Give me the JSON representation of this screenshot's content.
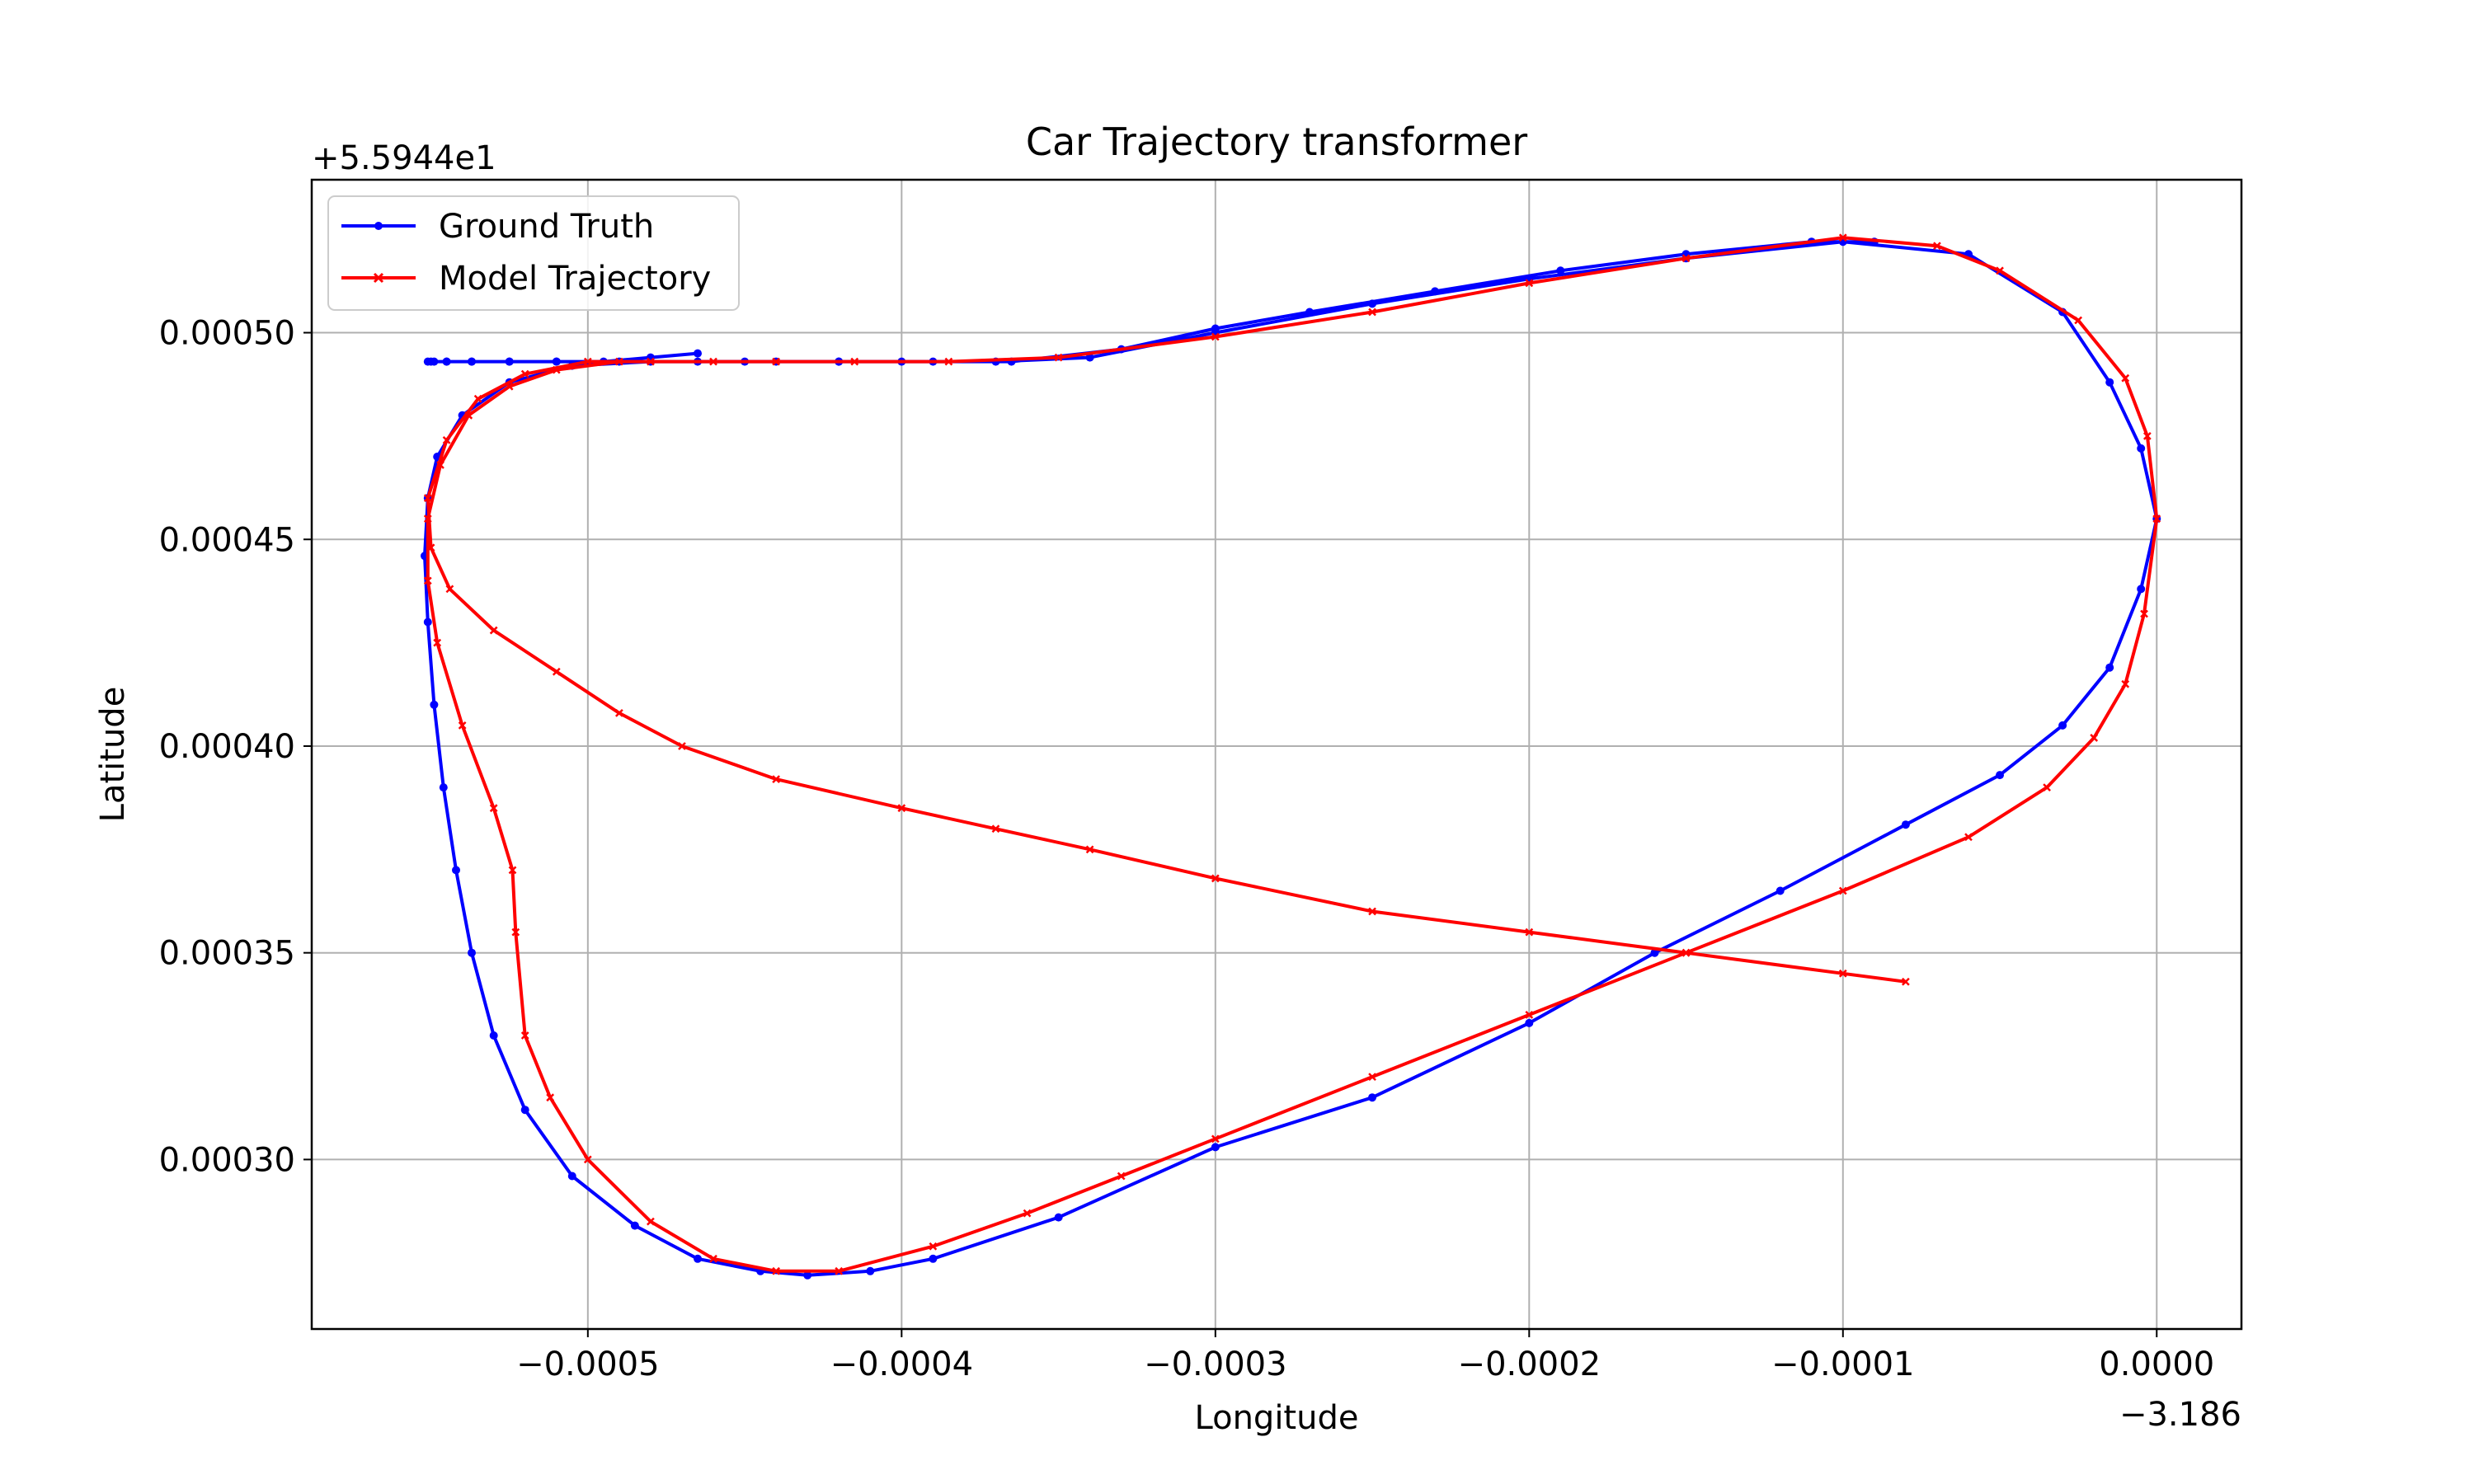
{
  "chart_data": {
    "type": "line",
    "title": "Car Trajectory transformer",
    "xlabel": "Longitude",
    "ylabel": "Latitude",
    "x_offset_label": "−3.186",
    "y_offset_label": "+5.5944e1",
    "xlim": [
      -0.000588,
      2.7e-05
    ],
    "ylim": [
      0.000259,
      0.000537
    ],
    "x_ticks": [
      -0.0005,
      -0.0004,
      -0.0003,
      -0.0002,
      -0.0001,
      0.0
    ],
    "x_tick_labels": [
      "−0.0005",
      "−0.0004",
      "−0.0003",
      "−0.0002",
      "−0.0001",
      "0.0000"
    ],
    "y_ticks": [
      0.0003,
      0.00035,
      0.0004,
      0.00045,
      0.0005
    ],
    "y_tick_labels": [
      "0.00030",
      "0.00035",
      "0.00040",
      "0.00045",
      "0.00050"
    ],
    "grid": true,
    "legend_position": "top-left",
    "series": [
      {
        "name": "Ground Truth",
        "color": "#0000ff",
        "marker": "dot",
        "x": [
          -0.000465,
          -0.00048,
          -0.000495,
          -0.00051,
          -0.000525,
          -0.000537,
          -0.000545,
          -0.00055,
          -0.000551,
          -0.000549,
          -0.000545,
          -0.000537,
          -0.000525,
          -0.00051,
          -0.00049,
          -0.000465,
          -0.00044,
          -0.00042,
          -0.0004,
          -0.00037,
          -0.00034,
          -0.0003,
          -0.00025,
          -0.0002,
          -0.00015,
          -0.0001,
          -6e-05,
          -3e-05,
          -1.5e-05,
          -5e-06,
          0.0,
          -5e-06,
          -1.5e-05,
          -3e-05,
          -5e-05,
          -8e-05,
          -0.00012,
          -0.00016,
          -0.0002,
          -0.00025,
          -0.0003,
          -0.00035,
          -0.00039,
          -0.00041,
          -0.00043,
          -0.000445,
          -0.000465,
          -0.000485,
          -0.000505,
          -0.00052,
          -0.00053,
          -0.000537,
          -0.000542,
          -0.000546,
          -0.000549,
          -0.000551,
          -0.000552,
          -0.000551,
          -0.000548,
          -0.00054,
          -0.000525,
          -0.000505,
          -0.00048,
          -0.00045,
          -0.00042,
          -0.00039,
          -0.000365,
          -0.00033,
          -0.0003,
          -0.00027,
          -0.00023,
          -0.00019,
          -0.00015,
          -0.00011,
          -9e-05
        ],
        "y": [
          0.000495,
          0.000494,
          0.000493,
          0.000493,
          0.000493,
          0.000493,
          0.000493,
          0.000493,
          0.000493,
          0.000493,
          0.000493,
          0.000493,
          0.000493,
          0.000493,
          0.000493,
          0.000493,
          0.000493,
          0.000493,
          0.000493,
          0.000493,
          0.000494,
          0.0005,
          0.000507,
          0.000513,
          0.000518,
          0.000522,
          0.000519,
          0.000505,
          0.000488,
          0.000472,
          0.000455,
          0.000438,
          0.000419,
          0.000405,
          0.000393,
          0.000381,
          0.000365,
          0.00035,
          0.000333,
          0.000315,
          0.000303,
          0.000286,
          0.000276,
          0.000273,
          0.000272,
          0.000273,
          0.000276,
          0.000284,
          0.000296,
          0.000312,
          0.00033,
          0.00035,
          0.00037,
          0.00039,
          0.00041,
          0.00043,
          0.000446,
          0.00046,
          0.00047,
          0.00048,
          0.000488,
          0.000492,
          0.000493,
          0.000493,
          0.000493,
          0.000493,
          0.000493,
          0.000496,
          0.000501,
          0.000505,
          0.00051,
          0.000515,
          0.000519,
          0.000522,
          0.000522
        ]
      },
      {
        "name": "Model Trajectory",
        "color": "#ff0000",
        "marker": "x",
        "x": [
          -0.00049,
          -0.00051,
          -0.000525,
          -0.000538,
          -0.000547,
          -0.000551,
          -0.000551,
          -0.000548,
          -0.00054,
          -0.00053,
          -0.000524,
          -0.000523,
          -0.00052,
          -0.000512,
          -0.0005,
          -0.00048,
          -0.00046,
          -0.00044,
          -0.00042,
          -0.00039,
          -0.00036,
          -0.00033,
          -0.0003,
          -0.00025,
          -0.0002,
          -0.00015,
          -0.0001,
          -6e-05,
          -3.5e-05,
          -2e-05,
          -1e-05,
          -4e-06,
          0.0,
          -3e-06,
          -1e-05,
          -2.5e-05,
          -5e-05,
          -7e-05,
          -0.0001,
          -0.00015,
          -0.0002,
          -0.00025,
          -0.0003,
          -0.00035,
          -0.000385,
          -0.000415,
          -0.00044,
          -0.00046,
          -0.00048,
          -0.0005,
          -0.00052,
          -0.000535,
          -0.000545,
          -0.000551,
          -0.00055,
          -0.000544,
          -0.00053,
          -0.00051,
          -0.00049,
          -0.00047,
          -0.00044,
          -0.0004,
          -0.00037,
          -0.00034,
          -0.0003,
          -0.00025,
          -0.0002,
          -0.00015,
          -0.0001,
          -8e-05
        ],
        "y": [
          0.000493,
          0.000491,
          0.000487,
          0.00048,
          0.000468,
          0.000455,
          0.00044,
          0.000425,
          0.000405,
          0.000385,
          0.00037,
          0.000355,
          0.00033,
          0.000315,
          0.0003,
          0.000285,
          0.000276,
          0.000273,
          0.000273,
          0.000279,
          0.000287,
          0.000296,
          0.000305,
          0.00032,
          0.000335,
          0.00035,
          0.000365,
          0.000378,
          0.00039,
          0.000402,
          0.000415,
          0.000432,
          0.000455,
          0.000475,
          0.000489,
          0.000503,
          0.000515,
          0.000521,
          0.000523,
          0.000518,
          0.000512,
          0.000505,
          0.000499,
          0.000494,
          0.000493,
          0.000493,
          0.000493,
          0.000493,
          0.000493,
          0.000493,
          0.00049,
          0.000484,
          0.000474,
          0.00046,
          0.000448,
          0.000438,
          0.000428,
          0.000418,
          0.000408,
          0.0004,
          0.000392,
          0.000385,
          0.00038,
          0.000375,
          0.000368,
          0.00036,
          0.000355,
          0.00035,
          0.000345,
          0.000343
        ]
      }
    ]
  }
}
